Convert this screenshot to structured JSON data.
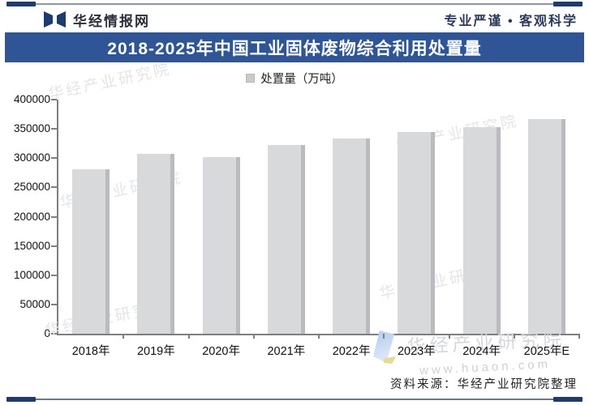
{
  "header": {
    "brand": "华经情报网",
    "tagline": "专业严谨 • 客观科学"
  },
  "title": "2018-2025年中国工业固体废物综合利用处置量",
  "legend": {
    "label": "处置量（万吨）"
  },
  "footer": {
    "source": "资料来源：华经产业研究院整理"
  },
  "watermark": {
    "name": "华经产业研究院",
    "url": "www.huaon.com"
  },
  "colors": {
    "banner_blue": "#2f5597",
    "accent_navy": "#1e3a6e",
    "bar_fill": "#d7d9db",
    "bar_shadow": "#b9bbbe",
    "axis": "#7f7f7f",
    "watermark_gray": "#e3e5e9"
  },
  "chart_data": {
    "type": "bar",
    "title": "2018-2025年中国工业固体废物综合利用处置量",
    "categories": [
      "2018年",
      "2019年",
      "2020年",
      "2021年",
      "2022年",
      "2023年",
      "2024年",
      "2025年E"
    ],
    "values": [
      281000,
      307000,
      302000,
      322000,
      334000,
      345000,
      353000,
      367000
    ],
    "series_name": "处置量（万吨）",
    "xlabel": "",
    "ylabel": "",
    "ylim": [
      0,
      400000
    ],
    "ytick_step": 50000,
    "grid": false,
    "legend_position": "top-center"
  }
}
